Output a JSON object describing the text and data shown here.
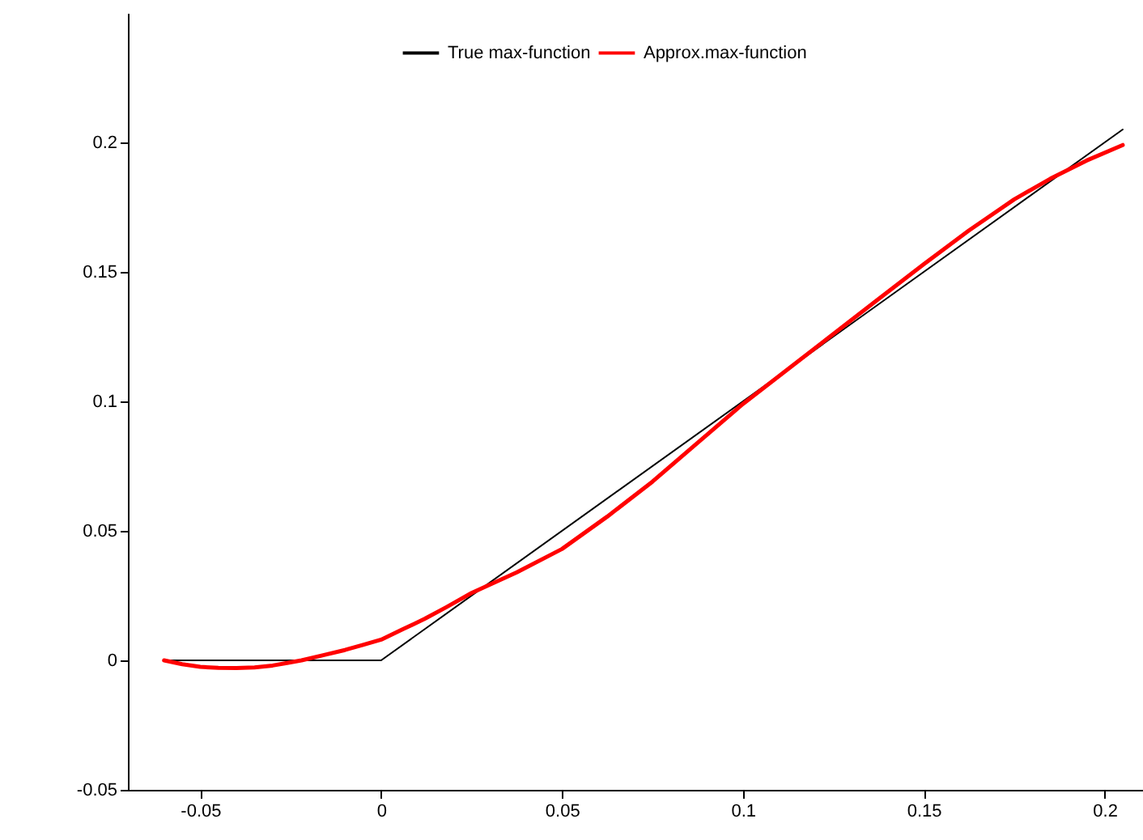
{
  "chart_data": {
    "type": "line",
    "xlim": [
      -0.07,
      0.22
    ],
    "xticks": [
      -0.05,
      0,
      0.05,
      0.1,
      0.15,
      0.2
    ],
    "ylim": [
      -0.05,
      0.25
    ],
    "yticks": [
      -0.05,
      0,
      0.05,
      0.1,
      0.15,
      0.2
    ],
    "grid": false,
    "legend": "top",
    "marker": "none",
    "line_style": "solid",
    "series": [
      {
        "name": "True max-function",
        "color": "#000000",
        "x": [
          -0.06,
          0,
          0.205
        ],
        "values": [
          0,
          0,
          0.205
        ]
      },
      {
        "name": "Approx.max-function",
        "color": "#ff0000",
        "x": [
          -0.06,
          -0.055,
          -0.05,
          -0.045,
          -0.04,
          -0.035,
          -0.03,
          -0.026,
          -0.022,
          -0.016,
          -0.01,
          -0.005,
          0,
          0.006,
          0.012,
          0.018,
          0.025,
          0.0375,
          0.05,
          0.0625,
          0.075,
          0.0875,
          0.1,
          0.1125,
          0.125,
          0.1375,
          0.15,
          0.1625,
          0.175,
          0.185,
          0.195,
          0.205
        ],
        "values": [
          0,
          -0.0015,
          -0.0025,
          -0.0029,
          -0.003,
          -0.0027,
          -0.002,
          -0.001,
          0,
          0.002,
          0.004,
          0.006,
          0.008,
          0.012,
          0.016,
          0.0205,
          0.026,
          0.034,
          0.043,
          0.0555,
          0.069,
          0.084,
          0.099,
          0.1125,
          0.126,
          0.1395,
          0.153,
          0.166,
          0.178,
          0.186,
          0.193,
          0.199
        ]
      }
    ]
  }
}
